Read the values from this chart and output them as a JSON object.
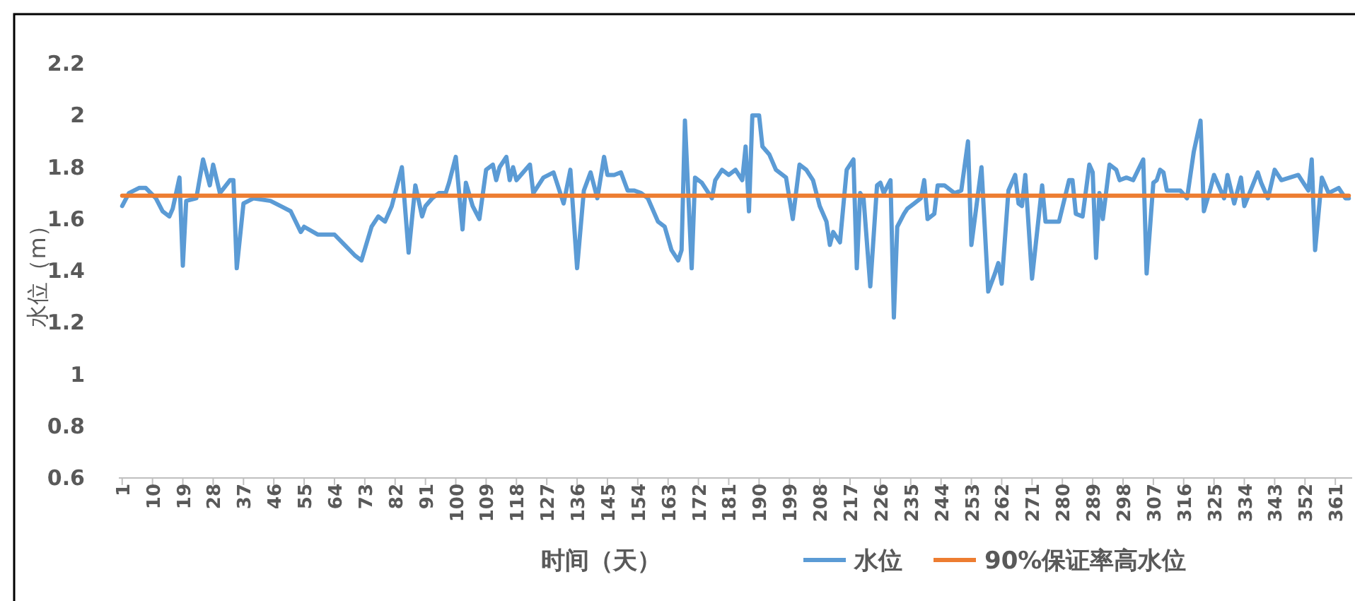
{
  "chart_data": {
    "type": "line",
    "xlabel": "时间（天）",
    "ylabel": "水位（m）",
    "legend": "bottom",
    "line_style": "solid",
    "xlim": [
      0,
      366
    ],
    "ylim": [
      0.6,
      2.2
    ],
    "xticks": [
      1,
      10,
      19,
      28,
      37,
      46,
      55,
      64,
      73,
      82,
      91,
      100,
      109,
      118,
      127,
      136,
      145,
      154,
      163,
      172,
      181,
      190,
      199,
      208,
      217,
      226,
      235,
      244,
      253,
      262,
      271,
      280,
      289,
      298,
      307,
      316,
      325,
      334,
      343,
      352,
      361
    ],
    "yticks": [
      0.6,
      0.8,
      1,
      1.2,
      1.4,
      1.6,
      1.8,
      2,
      2.2
    ],
    "series": [
      {
        "name": "水位",
        "color": "#5b9bd5",
        "x": [
          1,
          3,
          6,
          8,
          11,
          13,
          15,
          16,
          18,
          19,
          20,
          23,
          25,
          27,
          28,
          30,
          33,
          34,
          35,
          37,
          40,
          45,
          48,
          51,
          54,
          55,
          59,
          64,
          67,
          70,
          72,
          75,
          77,
          79,
          81,
          84,
          86,
          88,
          90,
          91,
          93,
          95,
          97,
          98,
          100,
          102,
          103,
          105,
          107,
          109,
          111,
          112,
          113,
          115,
          116,
          117,
          118,
          120,
          122,
          123,
          126,
          129,
          132,
          134,
          136,
          138,
          140,
          142,
          144,
          145,
          147,
          149,
          151,
          153,
          155,
          157,
          160,
          162,
          164,
          166,
          167,
          168,
          170,
          171,
          173,
          176,
          177,
          179,
          181,
          183,
          185,
          186,
          187,
          188,
          190,
          191,
          193,
          195,
          198,
          200,
          202,
          204,
          206,
          208,
          210,
          211,
          212,
          214,
          216,
          218,
          219,
          220,
          221,
          223,
          225,
          226,
          227,
          229,
          230,
          231,
          233,
          234,
          236,
          238,
          239,
          240,
          242,
          243,
          245,
          248,
          250,
          252,
          253,
          256,
          258,
          260,
          261,
          262,
          264,
          266,
          267,
          268,
          269,
          271,
          274,
          275,
          277,
          279,
          282,
          283,
          284,
          286,
          288,
          289,
          290,
          291,
          292,
          294,
          296,
          297,
          299,
          301,
          304,
          305,
          307,
          308,
          309,
          310,
          311,
          315,
          317,
          319,
          321,
          322,
          324,
          325,
          326,
          328,
          329,
          331,
          333,
          334,
          338,
          339,
          341,
          343,
          345,
          350,
          353,
          354,
          355,
          357,
          359,
          362,
          364,
          365
        ],
        "values": [
          1.65,
          1.7,
          1.72,
          1.72,
          1.68,
          1.63,
          1.61,
          1.64,
          1.76,
          1.42,
          1.67,
          1.68,
          1.83,
          1.73,
          1.81,
          1.7,
          1.75,
          1.75,
          1.41,
          1.66,
          1.68,
          1.67,
          1.65,
          1.63,
          1.55,
          1.57,
          1.54,
          1.54,
          1.5,
          1.46,
          1.44,
          1.57,
          1.61,
          1.59,
          1.65,
          1.8,
          1.47,
          1.73,
          1.61,
          1.65,
          1.68,
          1.7,
          1.7,
          1.74,
          1.84,
          1.56,
          1.74,
          1.65,
          1.6,
          1.79,
          1.81,
          1.75,
          1.8,
          1.84,
          1.75,
          1.8,
          1.75,
          1.78,
          1.81,
          1.7,
          1.76,
          1.78,
          1.66,
          1.79,
          1.41,
          1.71,
          1.78,
          1.68,
          1.84,
          1.77,
          1.77,
          1.78,
          1.71,
          1.71,
          1.7,
          1.68,
          1.59,
          1.57,
          1.48,
          1.44,
          1.48,
          1.98,
          1.41,
          1.76,
          1.74,
          1.68,
          1.75,
          1.79,
          1.77,
          1.79,
          1.75,
          1.88,
          1.63,
          2.0,
          2.0,
          1.88,
          1.85,
          1.79,
          1.76,
          1.6,
          1.81,
          1.79,
          1.75,
          1.65,
          1.59,
          1.5,
          1.55,
          1.51,
          1.79,
          1.83,
          1.41,
          1.7,
          1.68,
          1.34,
          1.73,
          1.74,
          1.7,
          1.75,
          1.22,
          1.57,
          1.62,
          1.64,
          1.66,
          1.68,
          1.75,
          1.6,
          1.62,
          1.73,
          1.73,
          1.7,
          1.71,
          1.9,
          1.5,
          1.8,
          1.32,
          1.39,
          1.43,
          1.35,
          1.71,
          1.77,
          1.66,
          1.65,
          1.77,
          1.37,
          1.73,
          1.59,
          1.59,
          1.59,
          1.75,
          1.75,
          1.62,
          1.61,
          1.81,
          1.78,
          1.45,
          1.7,
          1.6,
          1.81,
          1.79,
          1.75,
          1.76,
          1.75,
          1.83,
          1.39,
          1.74,
          1.75,
          1.79,
          1.78,
          1.71,
          1.71,
          1.68,
          1.86,
          1.98,
          1.63,
          1.72,
          1.77,
          1.74,
          1.68,
          1.77,
          1.66,
          1.76,
          1.65,
          1.78,
          1.74,
          1.68,
          1.79,
          1.75,
          1.77,
          1.71,
          1.83,
          1.48,
          1.76,
          1.7,
          1.72,
          1.68,
          1.68
        ]
      },
      {
        "name": "90%保证率高水位",
        "color": "#ed7d31",
        "x": [
          1,
          365
        ],
        "values": [
          1.69,
          1.69
        ]
      }
    ]
  }
}
